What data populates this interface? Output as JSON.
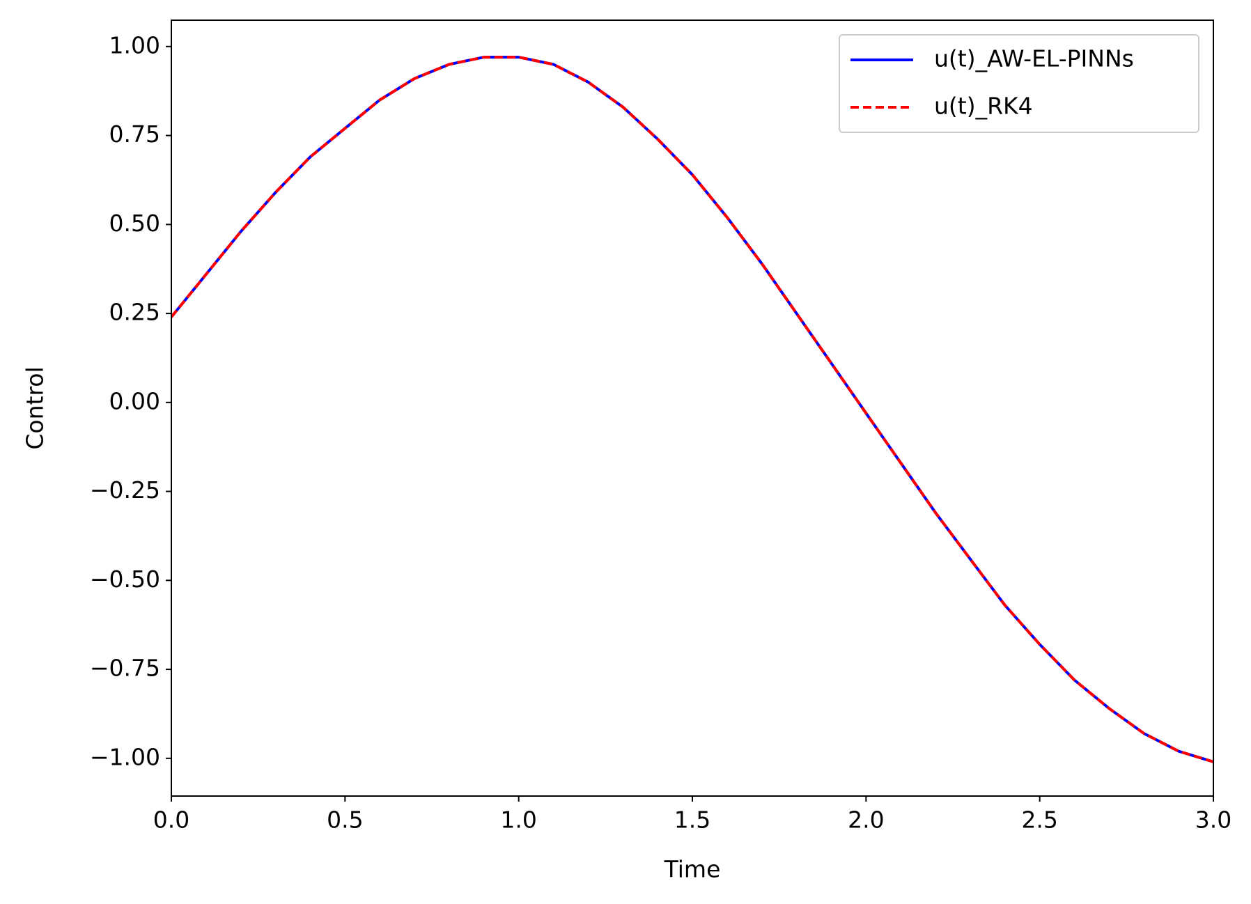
{
  "chart_data": {
    "type": "line",
    "xlabel": "Time",
    "ylabel": "Control",
    "x": [
      0.0,
      0.1,
      0.2,
      0.3,
      0.4,
      0.5,
      0.6,
      0.7,
      0.8,
      0.9,
      1.0,
      1.1,
      1.2,
      1.3,
      1.4,
      1.5,
      1.6,
      1.7,
      1.8,
      1.9,
      2.0,
      2.1,
      2.2,
      2.3,
      2.4,
      2.5,
      2.6,
      2.7,
      2.8,
      2.9,
      3.0
    ],
    "series": [
      {
        "name": "u(t)_AW-EL-PINNs",
        "color": "#0000ff",
        "dash": false,
        "values": [
          0.24,
          0.36,
          0.48,
          0.59,
          0.69,
          0.77,
          0.85,
          0.91,
          0.95,
          0.97,
          0.97,
          0.95,
          0.9,
          0.83,
          0.74,
          0.64,
          0.52,
          0.39,
          0.25,
          0.11,
          -0.03,
          -0.17,
          -0.31,
          -0.44,
          -0.57,
          -0.68,
          -0.78,
          -0.86,
          -0.93,
          -0.98,
          -1.01
        ]
      },
      {
        "name": "u(t)_RK4",
        "color": "#ff0000",
        "dash": true,
        "values": [
          0.24,
          0.36,
          0.48,
          0.59,
          0.69,
          0.77,
          0.85,
          0.91,
          0.95,
          0.97,
          0.97,
          0.95,
          0.9,
          0.83,
          0.74,
          0.64,
          0.52,
          0.39,
          0.25,
          0.11,
          -0.03,
          -0.17,
          -0.31,
          -0.44,
          -0.57,
          -0.68,
          -0.78,
          -0.86,
          -0.93,
          -0.98,
          -1.01
        ]
      }
    ],
    "xlim": [
      0,
      3
    ],
    "xticks": [
      {
        "value": 0,
        "label": "0.0"
      },
      0.5,
      {
        "value": 1,
        "label": "1.0"
      },
      1.5,
      {
        "value": 2,
        "label": "2.0"
      },
      2.5,
      {
        "value": 3,
        "label": "3.0"
      }
    ],
    "ylim": [
      -1.106,
      1.074
    ],
    "yticks": [
      {
        "value": -1,
        "label": "−1.00"
      },
      {
        "value": -0.75,
        "label": "−0.75"
      },
      {
        "value": -0.5,
        "label": "−0.50"
      },
      {
        "value": -0.25,
        "label": "−0.25"
      },
      {
        "value": 0,
        "label": "0.00"
      },
      {
        "value": 0.25,
        "label": "0.25"
      },
      {
        "value": 0.5,
        "label": "0.50"
      },
      {
        "value": 0.75,
        "label": "0.75"
      },
      {
        "value": 1,
        "label": "1.00"
      }
    ],
    "grid": false,
    "legend": "upper right"
  }
}
